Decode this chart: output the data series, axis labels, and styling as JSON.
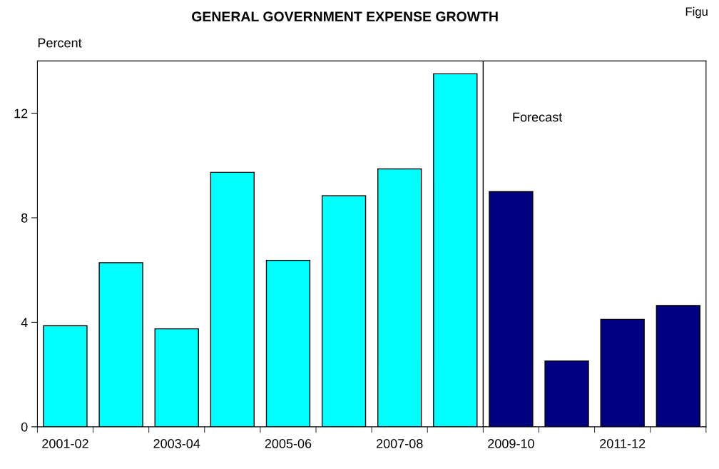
{
  "chart_data": {
    "type": "bar",
    "title": "GENERAL GOVERNMENT EXPENSE GROWTH",
    "ylabel": "Percent",
    "categories": [
      "2001-02",
      null,
      "2003-04",
      null,
      "2005-06",
      null,
      "2007-08",
      null,
      "2009-10",
      null,
      "2011-12",
      null
    ],
    "values": [
      3.87,
      6.28,
      3.75,
      9.74,
      6.37,
      8.84,
      9.87,
      13.51,
      9.0,
      2.52,
      4.11,
      4.64
    ],
    "colors": [
      "#00ffff",
      "#00ffff",
      "#00ffff",
      "#00ffff",
      "#00ffff",
      "#00ffff",
      "#00ffff",
      "#00ffff",
      "#000080",
      "#000080",
      "#000080",
      "#000080"
    ],
    "ylim": [
      0,
      14
    ],
    "yticks": [
      0,
      4,
      8,
      12
    ],
    "grid": false,
    "legend": false,
    "annotations": [
      "Forecast",
      "Figu"
    ]
  }
}
